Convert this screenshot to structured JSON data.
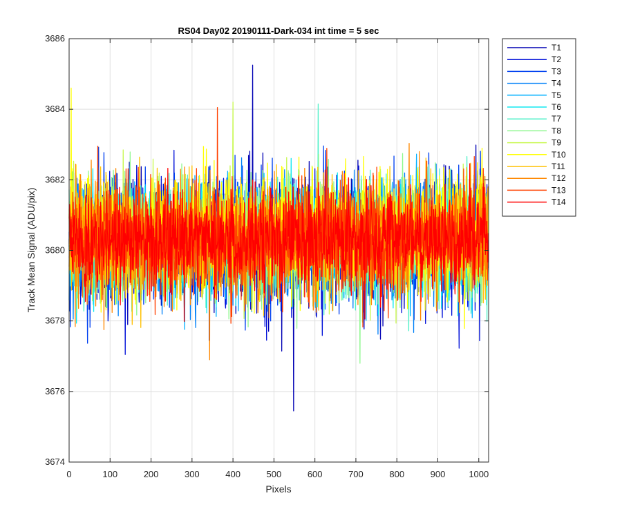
{
  "chart_data": {
    "type": "line",
    "title": "RS04 Day02 20190111-Dark-034 int time = 5 sec",
    "xlabel": "Pixels",
    "ylabel": "Track Mean Signal (ADU/pix)",
    "xlim": [
      0,
      1024
    ],
    "ylim": [
      3674,
      3686
    ],
    "xticks": [
      0,
      100,
      200,
      300,
      400,
      500,
      600,
      700,
      800,
      900,
      1000
    ],
    "yticks": [
      3674,
      3676,
      3678,
      3680,
      3682,
      3684,
      3686
    ],
    "grid": true,
    "legend_position": "outside-top-right",
    "x_points": 1024,
    "series": [
      {
        "name": "T1",
        "color": "#0000b4",
        "mean": 3680.3,
        "spread": 0.85,
        "spikes": [
          [
            448,
            3685.25
          ],
          [
            548,
            3675.45
          ]
        ]
      },
      {
        "name": "T2",
        "color": "#0010d8",
        "mean": 3680.2,
        "spread": 0.85,
        "spikes": [
          [
            137,
            3677.05
          ]
        ]
      },
      {
        "name": "T3",
        "color": "#0040f0",
        "mean": 3680.3,
        "spread": 0.85,
        "spikes": []
      },
      {
        "name": "T4",
        "color": "#0080f8",
        "mean": 3680.3,
        "spread": 0.8,
        "spikes": []
      },
      {
        "name": "T5",
        "color": "#00b0ff",
        "mean": 3680.3,
        "spread": 0.8,
        "spikes": []
      },
      {
        "name": "T6",
        "color": "#10e8f0",
        "mean": 3680.3,
        "spread": 0.8,
        "spikes": []
      },
      {
        "name": "T7",
        "color": "#50f0c8",
        "mean": 3680.3,
        "spread": 0.8,
        "spikes": [
          [
            608,
            3684.15
          ]
        ]
      },
      {
        "name": "T8",
        "color": "#90f890",
        "mean": 3680.3,
        "spread": 0.8,
        "spikes": [
          [
            710,
            3676.8
          ]
        ]
      },
      {
        "name": "T9",
        "color": "#c8f850",
        "mean": 3680.4,
        "spread": 0.8,
        "spikes": [
          [
            400,
            3684.2
          ]
        ]
      },
      {
        "name": "T10",
        "color": "#ffff00",
        "mean": 3680.5,
        "spread": 0.85,
        "spikes": [
          [
            5,
            3684.6
          ]
        ]
      },
      {
        "name": "T11",
        "color": "#ffc000",
        "mean": 3680.4,
        "spread": 0.8,
        "spikes": []
      },
      {
        "name": "T12",
        "color": "#ff8800",
        "mean": 3680.3,
        "spread": 0.8,
        "spikes": [
          [
            343,
            3676.9
          ]
        ]
      },
      {
        "name": "T13",
        "color": "#ff4000",
        "mean": 3680.4,
        "spread": 0.75,
        "spikes": [
          [
            362,
            3684.05
          ]
        ]
      },
      {
        "name": "T14",
        "color": "#ff0000",
        "mean": 3680.3,
        "spread": 0.7,
        "spikes": []
      }
    ]
  }
}
